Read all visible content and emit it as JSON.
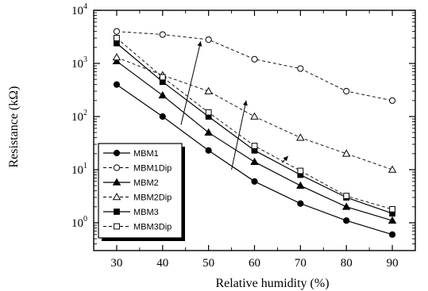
{
  "chart_data": {
    "type": "line",
    "xlabel": "Relative humidity (%)",
    "ylabel_main": "Resistance (k",
    "ylabel_unit": "Ω",
    "ylabel_close": ")",
    "yscale": "log",
    "xlim": [
      25,
      95
    ],
    "ylim": [
      0.3,
      10000
    ],
    "x": [
      30,
      40,
      50,
      60,
      70,
      80,
      90
    ],
    "x_ticks": [
      "30",
      "40",
      "50",
      "60",
      "70",
      "80",
      "90"
    ],
    "y_ticks": [
      {
        "base": "10",
        "exp": "0"
      },
      {
        "base": "10",
        "exp": "1"
      },
      {
        "base": "10",
        "exp": "2"
      },
      {
        "base": "10",
        "exp": "3"
      },
      {
        "base": "10",
        "exp": "4"
      }
    ],
    "y_tick_values": [
      1,
      10,
      100,
      1000,
      10000
    ],
    "legend_position": "lower-left",
    "grid": false,
    "series": [
      {
        "name": "MBM1",
        "values": [
          400,
          100,
          23,
          6,
          2.3,
          1.1,
          0.6
        ],
        "marker": "circle",
        "filled": true,
        "dashed": false
      },
      {
        "name": "MBM1Dip",
        "values": [
          4000,
          3500,
          2800,
          1200,
          800,
          300,
          200
        ],
        "marker": "circle",
        "filled": false,
        "dashed": true
      },
      {
        "name": "MBM2",
        "values": [
          1100,
          250,
          50,
          14,
          5,
          2,
          1.1
        ],
        "marker": "triangle",
        "filled": true,
        "dashed": false
      },
      {
        "name": "MBM2Dip",
        "values": [
          1300,
          600,
          300,
          100,
          40,
          20,
          10
        ],
        "marker": "triangle",
        "filled": false,
        "dashed": true
      },
      {
        "name": "MBM3",
        "values": [
          2400,
          450,
          100,
          23,
          8,
          3,
          1.5
        ],
        "marker": "square",
        "filled": true,
        "dashed": false
      },
      {
        "name": "MBM3Dip",
        "values": [
          3000,
          550,
          120,
          28,
          9.5,
          3.2,
          1.8
        ],
        "marker": "square",
        "filled": false,
        "dashed": true
      }
    ],
    "annotations": [
      {
        "type": "arrow",
        "from": [
          44,
          70
        ],
        "to": [
          48.3,
          2600
        ]
      },
      {
        "type": "arrow",
        "from": [
          55,
          10
        ],
        "to": [
          58.2,
          200
        ]
      },
      {
        "type": "arrow",
        "from": [
          66,
          13.5
        ],
        "to": [
          67.3,
          18
        ]
      }
    ]
  }
}
